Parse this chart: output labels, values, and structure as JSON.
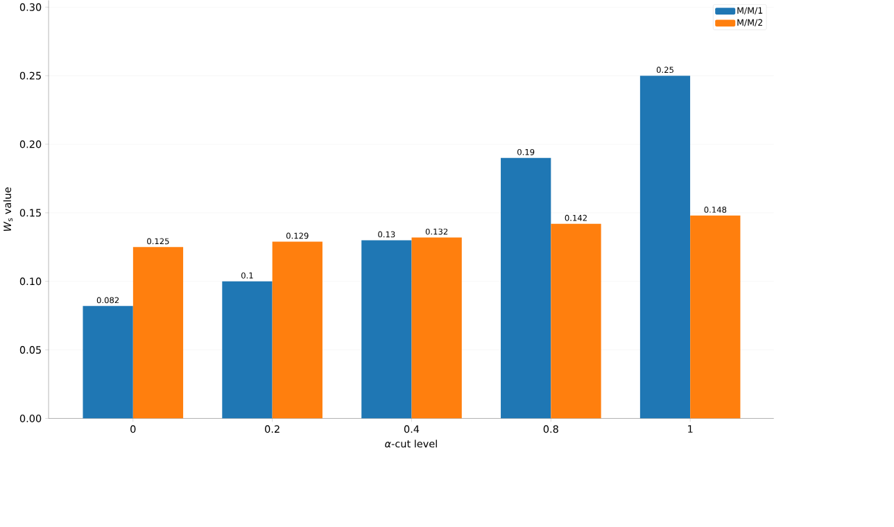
{
  "chart_data": {
    "type": "bar",
    "categories": [
      "0",
      "0.2",
      "0.4",
      "0.8",
      "1"
    ],
    "xlabel": "*α*-cut level",
    "ylabel": "*W*$_{s}$ value",
    "series": [
      {
        "name": "M/M/1",
        "color": "#1f77b4",
        "values": [
          0.082,
          0.1,
          0.13,
          0.19,
          0.25
        ]
      },
      {
        "name": "M/M/2",
        "color": "#ff7f0e",
        "values": [
          0.125,
          0.129,
          0.132,
          0.142,
          0.148
        ]
      }
    ],
    "ylim": [
      0,
      0.305
    ],
    "yticks": [
      {
        "value": 0,
        "label": "0.00"
      },
      {
        "value": 0.05,
        "label": "0.05"
      },
      {
        "value": 0.1,
        "label": "0.10"
      },
      {
        "value": 0.15,
        "label": "0.15"
      },
      {
        "value": 0.2,
        "label": "0.20"
      },
      {
        "value": 0.25,
        "label": "0.25"
      },
      {
        "value": 0.3,
        "label": "0.30"
      }
    ],
    "grid": "y",
    "legend": "top right",
    "data_labels": true
  }
}
